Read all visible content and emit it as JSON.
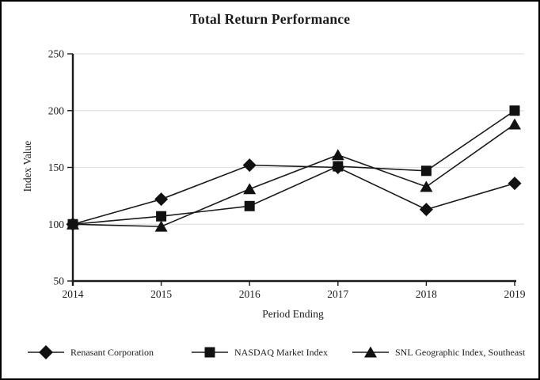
{
  "chart_data": {
    "type": "line",
    "title": "Total Return Performance",
    "xlabel": "Period Ending",
    "ylabel": "Index Value",
    "categories": [
      "2014",
      "2015",
      "2016",
      "2017",
      "2018",
      "2019"
    ],
    "ylim": [
      50,
      250
    ],
    "yticks": [
      50,
      100,
      150,
      200,
      250
    ],
    "gridlines": [
      100,
      150,
      200,
      250
    ],
    "grid": true,
    "legend_position": "bottom",
    "colors": {
      "line": "#1a1a1a",
      "marker": "#111111",
      "grid": "#e2e2e2",
      "background": "#ffffff",
      "border": "#000000"
    },
    "series": [
      {
        "name": "Renasant Corporation",
        "marker": "diamond",
        "values": [
          100,
          122,
          152,
          150,
          113,
          136
        ]
      },
      {
        "name": "NASDAQ Market Index",
        "marker": "square",
        "values": [
          100,
          107,
          116,
          151,
          147,
          200
        ]
      },
      {
        "name": "SNL Geographic Index, Southeast",
        "marker": "triangle",
        "values": [
          100,
          98,
          131,
          161,
          133,
          188
        ]
      }
    ]
  }
}
